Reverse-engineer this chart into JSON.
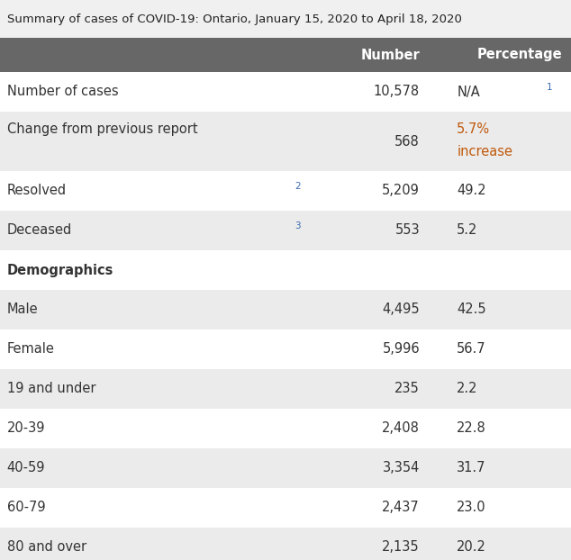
{
  "title": "Summary of cases of COVID-19: Ontario, January 15, 2020 to April 18, 2020",
  "header_bg": "#676767",
  "header_text_color": "#ffffff",
  "col_header_number": "Number",
  "col_header_percentage": "Percentage",
  "rows": [
    {
      "label": "Number of cases",
      "superscript": "1",
      "number": "10,578",
      "percentage": "N/A",
      "bg": "#ffffff",
      "label_color": "#333333",
      "num_color": "#333333",
      "pct_color": "#333333",
      "bold": false,
      "two_line_pct": false
    },
    {
      "label": "Change from previous report",
      "superscript": "",
      "number": "568",
      "percentage": "5.7%",
      "percentage2": "increase",
      "bg": "#ebebeb",
      "label_color": "#333333",
      "num_color": "#333333",
      "pct_color": "#c0580a",
      "bold": false,
      "two_line_pct": true
    },
    {
      "label": "Resolved",
      "superscript": "2",
      "number": "5,209",
      "percentage": "49.2",
      "percentage2": "",
      "bg": "#ffffff",
      "label_color": "#333333",
      "num_color": "#333333",
      "pct_color": "#333333",
      "bold": false,
      "two_line_pct": false
    },
    {
      "label": "Deceased",
      "superscript": "3",
      "number": "553",
      "percentage": "5.2",
      "percentage2": "",
      "bg": "#ebebeb",
      "label_color": "#333333",
      "num_color": "#333333",
      "pct_color": "#333333",
      "bold": false,
      "two_line_pct": false
    },
    {
      "label": "Demographics",
      "superscript": "",
      "number": "",
      "percentage": "",
      "percentage2": "",
      "bg": "#ffffff",
      "label_color": "#333333",
      "num_color": "#333333",
      "pct_color": "#333333",
      "bold": true,
      "two_line_pct": false
    },
    {
      "label": "Male",
      "superscript": "",
      "number": "4,495",
      "percentage": "42.5",
      "percentage2": "",
      "bg": "#ebebeb",
      "label_color": "#333333",
      "num_color": "#333333",
      "pct_color": "#333333",
      "bold": false,
      "two_line_pct": false
    },
    {
      "label": "Female",
      "superscript": "",
      "number": "5,996",
      "percentage": "56.7",
      "percentage2": "",
      "bg": "#ffffff",
      "label_color": "#333333",
      "num_color": "#333333",
      "pct_color": "#333333",
      "bold": false,
      "two_line_pct": false
    },
    {
      "label": "19 and under",
      "superscript": "",
      "number": "235",
      "percentage": "2.2",
      "percentage2": "",
      "bg": "#ebebeb",
      "label_color": "#333333",
      "num_color": "#333333",
      "pct_color": "#333333",
      "bold": false,
      "two_line_pct": false
    },
    {
      "label": "20-39",
      "superscript": "",
      "number": "2,408",
      "percentage": "22.8",
      "percentage2": "",
      "bg": "#ffffff",
      "label_color": "#333333",
      "num_color": "#333333",
      "pct_color": "#333333",
      "bold": false,
      "two_line_pct": false
    },
    {
      "label": "40-59",
      "superscript": "",
      "number": "3,354",
      "percentage": "31.7",
      "percentage2": "",
      "bg": "#ebebeb",
      "label_color": "#333333",
      "num_color": "#333333",
      "pct_color": "#333333",
      "bold": false,
      "two_line_pct": false
    },
    {
      "label": "60-79",
      "superscript": "",
      "number": "2,437",
      "percentage": "23.0",
      "percentage2": "",
      "bg": "#ffffff",
      "label_color": "#333333",
      "num_color": "#333333",
      "pct_color": "#333333",
      "bold": false,
      "two_line_pct": false
    },
    {
      "label": "80 and over",
      "superscript": "",
      "number": "2,135",
      "percentage": "20.2",
      "percentage2": "",
      "bg": "#ebebeb",
      "label_color": "#333333",
      "num_color": "#333333",
      "pct_color": "#333333",
      "bold": false,
      "two_line_pct": false
    }
  ],
  "title_bg": "#f0f0f0",
  "title_color": "#222222",
  "superscript_color": "#3a6ab0",
  "fig_width": 6.34,
  "fig_height": 6.22,
  "dpi": 100,
  "title_fontsize": 9.5,
  "body_fontsize": 10.5,
  "header_fontsize": 10.5
}
